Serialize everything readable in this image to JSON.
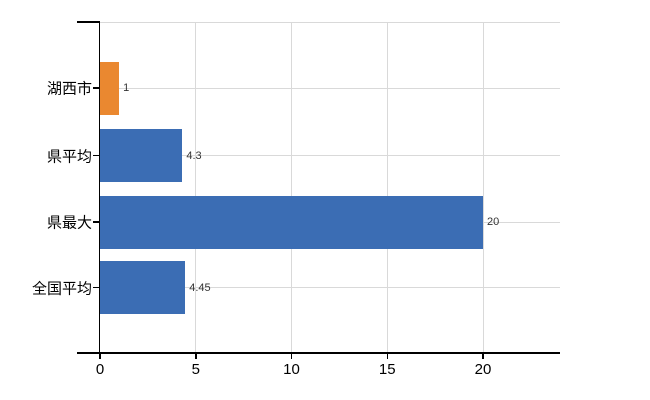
{
  "page": {
    "background_color": "#ffffff"
  },
  "colors": {
    "bar_blue": "#3b6db4",
    "bar_orange": "#ea8830",
    "gridline": "#d9d9d9",
    "axis": "#000000",
    "category_label": "#000000",
    "value_label": "#333333"
  },
  "chart_data": {
    "type": "bar",
    "orientation": "horizontal",
    "title": "",
    "xlabel": "",
    "ylabel": "",
    "categories": [
      "湖西市",
      "県平均",
      "県最大",
      "全国平均"
    ],
    "values": [
      1,
      4.3,
      20,
      4.45
    ],
    "value_labels": [
      "1",
      "4.3",
      "20",
      "4.45"
    ],
    "bar_colors": [
      "#ea8830",
      "#3b6db4",
      "#3b6db4",
      "#3b6db4"
    ],
    "x_tick_values": [
      0,
      5,
      10,
      15,
      20
    ],
    "x_tick_labels": [
      "0",
      "5",
      "10",
      "15",
      "20"
    ],
    "xlim": [
      0,
      24
    ],
    "grid": true,
    "legend": false,
    "highlighted_category": "湖西市"
  }
}
